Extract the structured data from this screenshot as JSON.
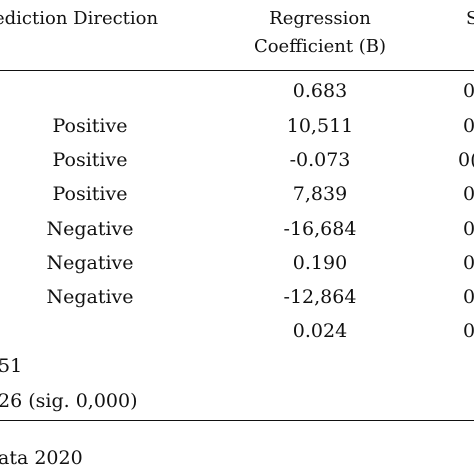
{
  "header": {
    "col_direction": "ediction Direction",
    "col_coef_line1": "Regression",
    "col_coef_line2": "Coefficient (B)",
    "col_next_partial": "S"
  },
  "rows": [
    {
      "direction": "",
      "coef": "0.683",
      "next": "0"
    },
    {
      "direction": "Positive",
      "coef": "10,511",
      "next": "0"
    },
    {
      "direction": "Positive",
      "coef": "-0.073",
      "next": "0("
    },
    {
      "direction": "Positive",
      "coef": "7,839",
      "next": "0"
    },
    {
      "direction": "Negative",
      "coef": "-16,684",
      "next": "0"
    },
    {
      "direction": "Negative",
      "coef": "0.190",
      "next": "0"
    },
    {
      "direction": "Negative",
      "coef": "-12,864",
      "next": "0"
    },
    {
      "direction": "",
      "coef": "0.024",
      "next": "0"
    }
  ],
  "footer": {
    "line1": "51",
    "line2": "26 (sig. 0,000)",
    "source": "ata 2020"
  }
}
